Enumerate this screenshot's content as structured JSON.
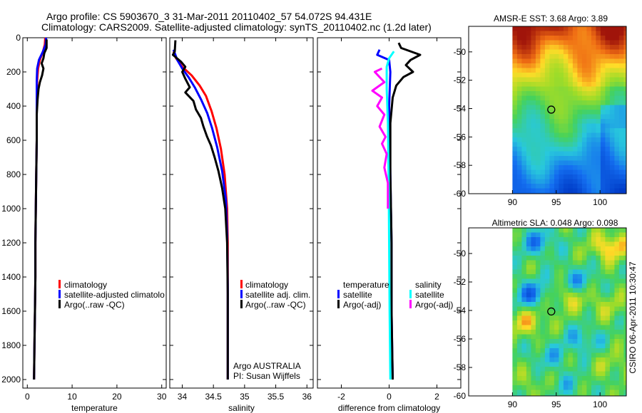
{
  "header": {
    "line1": "Argo profile: CS 5903670_3 31-Mar-2011 20110402_57 54.072S 94.431E",
    "line2": "Climatology: CARS2009. Satellite-adjusted climatology: synTS_20110402.nc (1.2d later)"
  },
  "side_label": "CSIRO 06-Apr-2011 10:30:47",
  "colors": {
    "climatology": "#ff0000",
    "satellite": "#0000ff",
    "argo": "#000000",
    "sat_salinity": "#00ffff",
    "argo_salinity": "#ff00ff"
  },
  "chart_data": [
    {
      "type": "line",
      "name": "temperature-profile",
      "xlabel": "temperature",
      "xlim": [
        -1,
        31
      ],
      "ylim": [
        2050,
        0
      ],
      "xticks": [
        "0",
        "10",
        "20",
        "30"
      ],
      "yticks": [
        "0",
        "200",
        "400",
        "600",
        "800",
        "1000",
        "1200",
        "1400",
        "1600",
        "1800",
        "2000"
      ],
      "series": [
        {
          "name": "climatology",
          "color": "#ff0000",
          "points": [
            [
              4.0,
              0
            ],
            [
              3.9,
              40
            ],
            [
              3.5,
              80
            ],
            [
              2.8,
              130
            ],
            [
              2.4,
              180
            ],
            [
              2.2,
              250
            ],
            [
              2.1,
              400
            ],
            [
              2.1,
              600
            ],
            [
              2.0,
              800
            ],
            [
              1.9,
              1000
            ],
            [
              1.8,
              1200
            ],
            [
              1.8,
              1400
            ],
            [
              1.7,
              1600
            ],
            [
              1.6,
              1800
            ],
            [
              1.5,
              2000
            ]
          ]
        },
        {
          "name": "satellite-adjusted climatology",
          "color": "#0000ff",
          "points": [
            [
              4.2,
              0
            ],
            [
              4.1,
              40
            ],
            [
              3.5,
              80
            ],
            [
              2.6,
              130
            ],
            [
              2.2,
              180
            ],
            [
              2.1,
              250
            ],
            [
              2.1,
              400
            ],
            [
              2.1,
              600
            ],
            [
              2.0,
              800
            ],
            [
              1.9,
              1000
            ],
            [
              1.8,
              1200
            ],
            [
              1.8,
              1400
            ],
            [
              1.7,
              1600
            ],
            [
              1.6,
              1800
            ],
            [
              1.5,
              2000
            ]
          ]
        },
        {
          "name": "Argo(..raw -QC)",
          "color": "#000000",
          "points": [
            [
              4.3,
              10
            ],
            [
              4.3,
              60
            ],
            [
              3.8,
              90
            ],
            [
              3.6,
              120
            ],
            [
              3.2,
              150
            ],
            [
              3.6,
              180
            ],
            [
              3.3,
              220
            ],
            [
              2.8,
              260
            ],
            [
              2.5,
              300
            ],
            [
              2.3,
              360
            ],
            [
              2.1,
              450
            ],
            [
              2.1,
              600
            ],
            [
              2.0,
              800
            ],
            [
              1.9,
              1000
            ],
            [
              1.8,
              1200
            ],
            [
              1.8,
              1400
            ],
            [
              1.7,
              1600
            ],
            [
              1.6,
              1800
            ],
            [
              1.5,
              2000
            ]
          ]
        }
      ],
      "legend": [
        "climatology",
        "satellite-adjusted climatolo",
        "Argo(..raw -QC)"
      ]
    },
    {
      "type": "line",
      "name": "salinity-profile",
      "xlabel": "salinity",
      "xlim": [
        33.8,
        36.1
      ],
      "ylim": [
        2050,
        0
      ],
      "xticks": [
        "34",
        "34.5",
        "35",
        "35.5",
        "36"
      ],
      "series": [
        {
          "name": "climatology",
          "color": "#ff0000",
          "points": [
            [
              33.86,
              80
            ],
            [
              33.9,
              120
            ],
            [
              34.0,
              170
            ],
            [
              34.15,
              220
            ],
            [
              34.28,
              280
            ],
            [
              34.38,
              340
            ],
            [
              34.47,
              430
            ],
            [
              34.55,
              530
            ],
            [
              34.62,
              650
            ],
            [
              34.68,
              800
            ],
            [
              34.72,
              1000
            ],
            [
              34.73,
              1200
            ],
            [
              34.73,
              1500
            ],
            [
              34.73,
              2000
            ]
          ]
        },
        {
          "name": "satellite adj. clim.",
          "color": "#0000ff",
          "points": [
            [
              33.86,
              70
            ],
            [
              33.92,
              130
            ],
            [
              34.0,
              180
            ],
            [
              34.1,
              230
            ],
            [
              34.2,
              290
            ],
            [
              34.3,
              360
            ],
            [
              34.4,
              440
            ],
            [
              34.48,
              530
            ],
            [
              34.56,
              640
            ],
            [
              34.64,
              780
            ],
            [
              34.7,
              950
            ],
            [
              34.72,
              1150
            ],
            [
              34.73,
              1450
            ],
            [
              34.73,
              2000
            ]
          ]
        },
        {
          "name": "Argo(..raw -QC)",
          "color": "#000000",
          "points": [
            [
              33.89,
              15
            ],
            [
              33.88,
              80
            ],
            [
              33.85,
              100
            ],
            [
              33.98,
              140
            ],
            [
              34.05,
              170
            ],
            [
              34.0,
              200
            ],
            [
              34.05,
              240
            ],
            [
              34.12,
              290
            ],
            [
              34.05,
              320
            ],
            [
              34.18,
              370
            ],
            [
              34.22,
              420
            ],
            [
              34.3,
              470
            ],
            [
              34.34,
              520
            ],
            [
              34.4,
              580
            ],
            [
              34.46,
              630
            ],
            [
              34.52,
              700
            ],
            [
              34.58,
              780
            ],
            [
              34.64,
              880
            ],
            [
              34.69,
              1000
            ],
            [
              34.72,
              1200
            ],
            [
              34.73,
              1500
            ],
            [
              34.73,
              2000
            ]
          ]
        }
      ],
      "legend": [
        "climatology",
        "satellite adj. clim.",
        "Argo(..raw -QC)"
      ],
      "annotation": [
        "Argo AUSTRALIA",
        "PI: Susan Wijffels"
      ]
    },
    {
      "type": "line",
      "name": "difference-profile",
      "xlabel": "difference from climatology",
      "xlim": [
        -3,
        3
      ],
      "ylim": [
        2050,
        0
      ],
      "xticks": [
        "-2",
        "0",
        "2"
      ],
      "series": [
        {
          "name": "temperature satellite",
          "color": "#0000ff",
          "points": [
            [
              -0.4,
              70
            ],
            [
              -0.5,
              100
            ],
            [
              0.0,
              130
            ],
            [
              0.05,
              200
            ],
            [
              0.0,
              400
            ],
            [
              0.05,
              800
            ],
            [
              0.1,
              1200
            ],
            [
              0.1,
              1600
            ],
            [
              0.15,
              2000
            ]
          ]
        },
        {
          "name": "temperature Argo(-adj)",
          "color": "#000000",
          "points": [
            [
              0.4,
              30
            ],
            [
              0.5,
              60
            ],
            [
              1.3,
              100
            ],
            [
              0.9,
              130
            ],
            [
              0.7,
              160
            ],
            [
              1.0,
              200
            ],
            [
              0.6,
              230
            ],
            [
              0.3,
              280
            ],
            [
              0.15,
              350
            ],
            [
              0.05,
              500
            ],
            [
              0.05,
              800
            ],
            [
              0.1,
              1200
            ],
            [
              0.1,
              1600
            ],
            [
              0.15,
              2000
            ]
          ]
        },
        {
          "name": "salinity satellite",
          "color": "#00ffff",
          "points": [
            [
              0.2,
              80
            ],
            [
              0.0,
              120
            ],
            [
              -0.1,
              170
            ],
            [
              -0.1,
              300
            ],
            [
              -0.05,
              500
            ],
            [
              -0.02,
              800
            ],
            [
              0.0,
              1200
            ],
            [
              0.02,
              1600
            ],
            [
              0.05,
              2000
            ]
          ]
        },
        {
          "name": "salinity Argo(-adj)",
          "color": "#ff00ff",
          "points": [
            [
              -0.3,
              180
            ],
            [
              -0.6,
              200
            ],
            [
              -0.2,
              260
            ],
            [
              -0.7,
              310
            ],
            [
              -0.3,
              350
            ],
            [
              -0.5,
              400
            ],
            [
              -0.2,
              450
            ],
            [
              -0.4,
              520
            ],
            [
              -0.15,
              580
            ],
            [
              -0.3,
              620
            ],
            [
              -0.1,
              680
            ],
            [
              -0.2,
              760
            ],
            [
              -0.05,
              850
            ],
            [
              -0.05,
              1000
            ]
          ]
        }
      ],
      "legend": {
        "temperature_header": "temperature",
        "salinity_header": "salinity",
        "items": [
          "satellite",
          "Argo(-adj)",
          "satellite",
          "Argo(-adj)"
        ]
      }
    },
    {
      "type": "heatmap",
      "name": "sst-map",
      "title": "AMSR-E SST: 3.68 Argo: 3.89",
      "xticks": [
        "90",
        "95",
        "100"
      ],
      "yticks": [
        "-50",
        "-52",
        "-54",
        "-56",
        "-58",
        "-60"
      ],
      "xlim": [
        85,
        103
      ],
      "ylim": [
        -60,
        -48.2
      ],
      "marker": {
        "lon": 94.431,
        "lat": -54.072
      },
      "data_extent_lon": [
        90,
        103
      ]
    },
    {
      "type": "heatmap",
      "name": "sla-map",
      "title": "Altimetric SLA: 0.048 Argo: 0.098",
      "xticks": [
        "90",
        "95",
        "100"
      ],
      "yticks": [
        "-50",
        "-52",
        "-54",
        "-56",
        "-58",
        "-60"
      ],
      "xlim": [
        85,
        103
      ],
      "ylim": [
        -60,
        -48.2
      ],
      "marker": {
        "lon": 94.431,
        "lat": -54.072
      },
      "data_extent_lon": [
        90,
        103
      ]
    }
  ]
}
